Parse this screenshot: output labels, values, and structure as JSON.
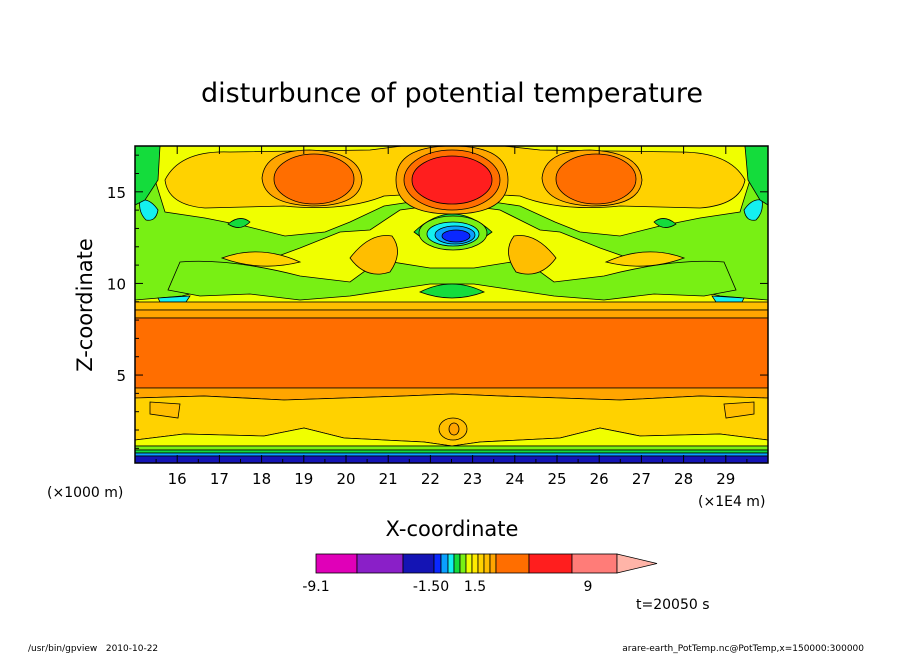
{
  "chart_data": {
    "type": "heatmap",
    "title": "disturbunce of potential temperature",
    "xlabel": "X-coordinate",
    "ylabel": "Z-coordinate",
    "x_unit_left": "(×1000 m)",
    "x_unit_right": "(×1E4 m)",
    "xlim": [
      15,
      30
    ],
    "ylim": [
      0.2,
      17.5
    ],
    "x_ticks": [
      "16",
      "17",
      "18",
      "19",
      "20",
      "21",
      "22",
      "23",
      "24",
      "25",
      "26",
      "27",
      "28",
      "29"
    ],
    "y_ticks": [
      "5",
      "10",
      "15"
    ],
    "grid": false,
    "colorbar": {
      "labels": [
        "-9.1",
        "-1.50",
        "1.5",
        "9"
      ],
      "levels": [
        -9.1,
        -6,
        -3,
        -1.5,
        -1.2,
        -0.9,
        -0.6,
        -0.3,
        0,
        0.3,
        0.6,
        0.9,
        1.2,
        1.5,
        3,
        6,
        9
      ],
      "colors": [
        "#e000b8",
        "#8a1fc8",
        "#1414b4",
        "#0a28ff",
        "#0aa0ff",
        "#14f0f0",
        "#14dc3c",
        "#78f014",
        "#f0ff00",
        "#ffeb00",
        "#ffd200",
        "#ffbe00",
        "#ffa500",
        "#ff6e00",
        "#ff1e1e",
        "#ff7c78"
      ],
      "extend_max_color": "#ffb4a8"
    },
    "annotation": "t=20050 s",
    "footer_left": "/usr/bin/gpview   2010-10-22",
    "footer_right": "arare-earth_PotTemp.nc@PotTemp,x=150000:300000",
    "bands": [
      {
        "z_bottom": 0.2,
        "z_top": 0.5,
        "level": "-3"
      },
      {
        "z_bottom": 0.5,
        "z_top": 0.7,
        "level": "-0.3"
      },
      {
        "z_bottom": 0.7,
        "z_top": 1.0,
        "level": "0"
      },
      {
        "z_bottom": 1.0,
        "z_top": 1.4,
        "level": "0.3"
      },
      {
        "z_bottom": 1.4,
        "z_top": 3.9,
        "level": "0.9"
      },
      {
        "z_bottom": 3.9,
        "z_top": 4.4,
        "level": "1.2"
      },
      {
        "z_bottom": 4.4,
        "z_top": 8.0,
        "level": "1.5"
      },
      {
        "z_bottom": 8.0,
        "z_top": 8.6,
        "level": "0.6"
      },
      {
        "z_bottom": 8.6,
        "z_top": 9.3,
        "level": "0.3"
      },
      {
        "z_bottom": 9.3,
        "z_top": 17.5,
        "level": "0.3"
      }
    ],
    "features": [
      {
        "x": 22.6,
        "z": 15.9,
        "level": "3",
        "kind": "maximum"
      },
      {
        "x": 19.4,
        "z": 15.8,
        "level": "1.5",
        "kind": "maximum"
      },
      {
        "x": 25.8,
        "z": 15.8,
        "level": "1.5",
        "kind": "maximum"
      },
      {
        "x": 22.6,
        "z": 12.6,
        "level": "-1.5",
        "kind": "minimum"
      },
      {
        "x": 21.1,
        "z": 11.4,
        "level": "1.2",
        "kind": "maximum"
      },
      {
        "x": 24.1,
        "z": 11.4,
        "level": "1.2",
        "kind": "maximum"
      },
      {
        "x": 22.6,
        "z": 9.8,
        "level": "0",
        "kind": "minimum"
      },
      {
        "x": 22.6,
        "z": 1.6,
        "level": "1.2",
        "kind": "maximum"
      }
    ]
  }
}
